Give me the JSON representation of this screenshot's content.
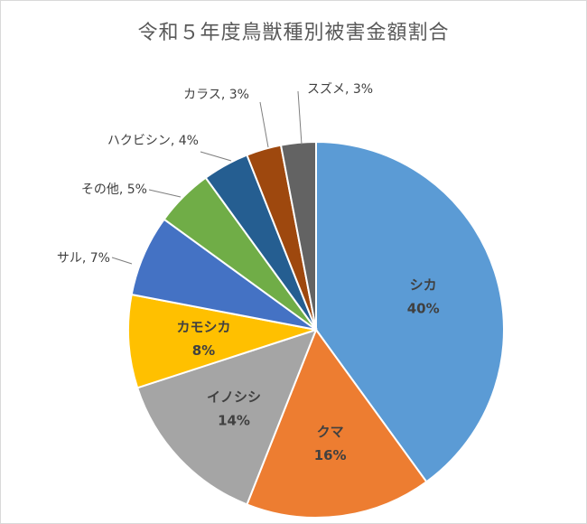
{
  "chart_data": {
    "type": "pie",
    "title": "令和５年度鳥獣種別被害金額割合",
    "slices": [
      {
        "label": "シカ",
        "value": 40,
        "display": "40%",
        "color": "#5B9BD5",
        "label_position": "inside"
      },
      {
        "label": "クマ",
        "value": 16,
        "display": "16%",
        "color": "#ED7D31",
        "label_position": "inside"
      },
      {
        "label": "イノシシ",
        "value": 14,
        "display": "14%",
        "color": "#A5A5A5",
        "label_position": "inside"
      },
      {
        "label": "カモシカ",
        "value": 8,
        "display": "8%",
        "color": "#FFC000",
        "label_position": "inside"
      },
      {
        "label": "サル",
        "value": 7,
        "display": "7%",
        "color": "#4472C4",
        "label_position": "outside"
      },
      {
        "label": "その他",
        "value": 5,
        "display": "5%",
        "color": "#70AD47",
        "label_position": "outside"
      },
      {
        "label": "ハクビシン",
        "value": 4,
        "display": "4%",
        "color": "#255E91",
        "label_position": "outside"
      },
      {
        "label": "カラス",
        "value": 3,
        "display": "3%",
        "color": "#9E480E",
        "label_position": "outside"
      },
      {
        "label": "スズメ",
        "value": 3,
        "display": "3%",
        "color": "#636363",
        "label_position": "outside"
      }
    ],
    "legend": "none"
  }
}
